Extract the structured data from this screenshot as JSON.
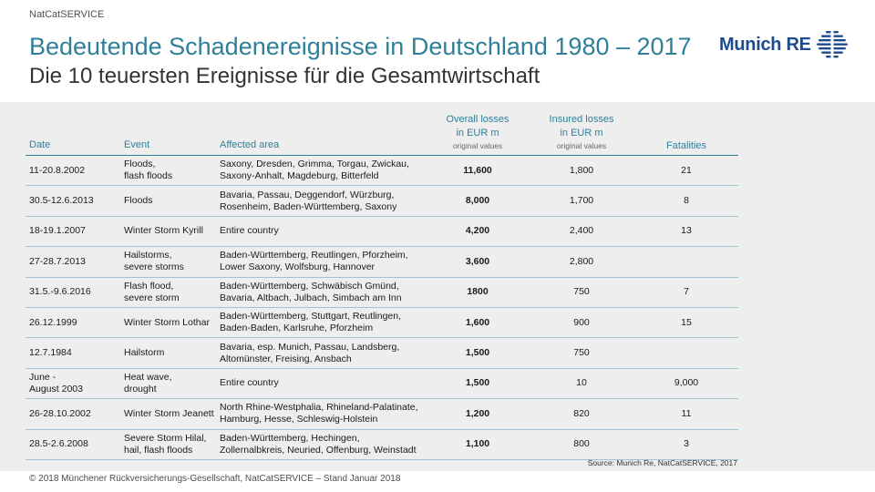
{
  "brand_label": "NatCatSERVICE",
  "title": "Bedeutende Schadenereignisse in Deutschland 1980 – 2017",
  "subtitle": "Die 10 teuersten Ereignisse für die Gesamtwirtschaft",
  "logo": {
    "text": "Munich RE",
    "icon": "munich-re-logo-icon",
    "color": "#1e4b8c"
  },
  "colors": {
    "title": "#2f7f99",
    "panel": "#eeeeee",
    "rule": "#9fc3d0"
  },
  "table": {
    "headers": {
      "date": "Date",
      "event": "Event",
      "area": "Affected area",
      "overall_line1": "Overall losses",
      "overall_line2": "in EUR m",
      "overall_sub": "original values",
      "insured_line1": "Insured losses",
      "insured_line2": "in EUR m",
      "insured_sub": "original values",
      "fatalities": "Fatalities"
    },
    "rows": [
      {
        "date": "11-20.8.2002",
        "event": "Floods,\nflash floods",
        "area": "Saxony, Dresden, Grimma, Torgau, Zwickau,\nSaxony-Anhalt, Magdeburg, Bitterfeld",
        "overall": "11,600",
        "insured": "1,800",
        "fatalities": "21"
      },
      {
        "date": "30.5-12.6.2013",
        "event": "Floods",
        "area": "Bavaria, Passau, Deggendorf, Würzburg,\nRosenheim, Baden-Württemberg, Saxony",
        "overall": "8,000",
        "insured": "1,700",
        "fatalities": "8"
      },
      {
        "date": "18-19.1.2007",
        "event": "Winter Storm Kyrill",
        "area": "Entire country",
        "overall": "4,200",
        "insured": "2,400",
        "fatalities": "13"
      },
      {
        "date": "27-28.7.2013",
        "event": "Hailstorms,\nsevere storms",
        "area": "Baden-Württemberg, Reutlingen, Pforzheim,\nLower Saxony, Wolfsburg, Hannover",
        "overall": "3,600",
        "insured": "2,800",
        "fatalities": ""
      },
      {
        "date": "31.5.-9.6.2016",
        "event": "Flash flood,\nsevere storm",
        "area": "Baden-Württemberg, Schwäbisch Gmünd,\nBavaria, Altbach, Julbach, Simbach am Inn",
        "overall": "1800",
        "insured": "750",
        "fatalities": "7"
      },
      {
        "date": "26.12.1999",
        "event": "Winter Storm Lothar",
        "area": "Baden-Württemberg, Stuttgart, Reutlingen,\nBaden-Baden, Karlsruhe, Pforzheim",
        "overall": "1,600",
        "insured": "900",
        "fatalities": "15"
      },
      {
        "date": "12.7.1984",
        "event": "Hailstorm",
        "area": "Bavaria, esp. Munich, Passau, Landsberg,\nAltomünster, Freising, Ansbach",
        "overall": "1,500",
        "insured": "750",
        "fatalities": ""
      },
      {
        "date": "June -\nAugust 2003",
        "event": "Heat wave,\ndrought",
        "area": "Entire country",
        "overall": "1,500",
        "insured": "10",
        "fatalities": "9,000"
      },
      {
        "date": "26-28.10.2002",
        "event": "Winter Storm Jeanett",
        "area": "North Rhine-Westphalia, Rhineland-Palatinate,\nHamburg, Hesse, Schleswig-Holstein",
        "overall": "1,200",
        "insured": "820",
        "fatalities": "11"
      },
      {
        "date": "28.5-2.6.2008",
        "event": "Severe Storm Hilal,\nhail, flash floods",
        "area": "Baden-Württemberg, Hechingen,\nZollernalbkreis, Neuried, Offenburg, Weinstadt",
        "overall": "1,100",
        "insured": "800",
        "fatalities": "3"
      }
    ]
  },
  "source": "Source: Munich Re, NatCatSERVICE, 2017",
  "footer": "© 2018 Münchener Rückversicherungs-Gesellschaft, NatCatSERVICE  – Stand Januar 2018"
}
